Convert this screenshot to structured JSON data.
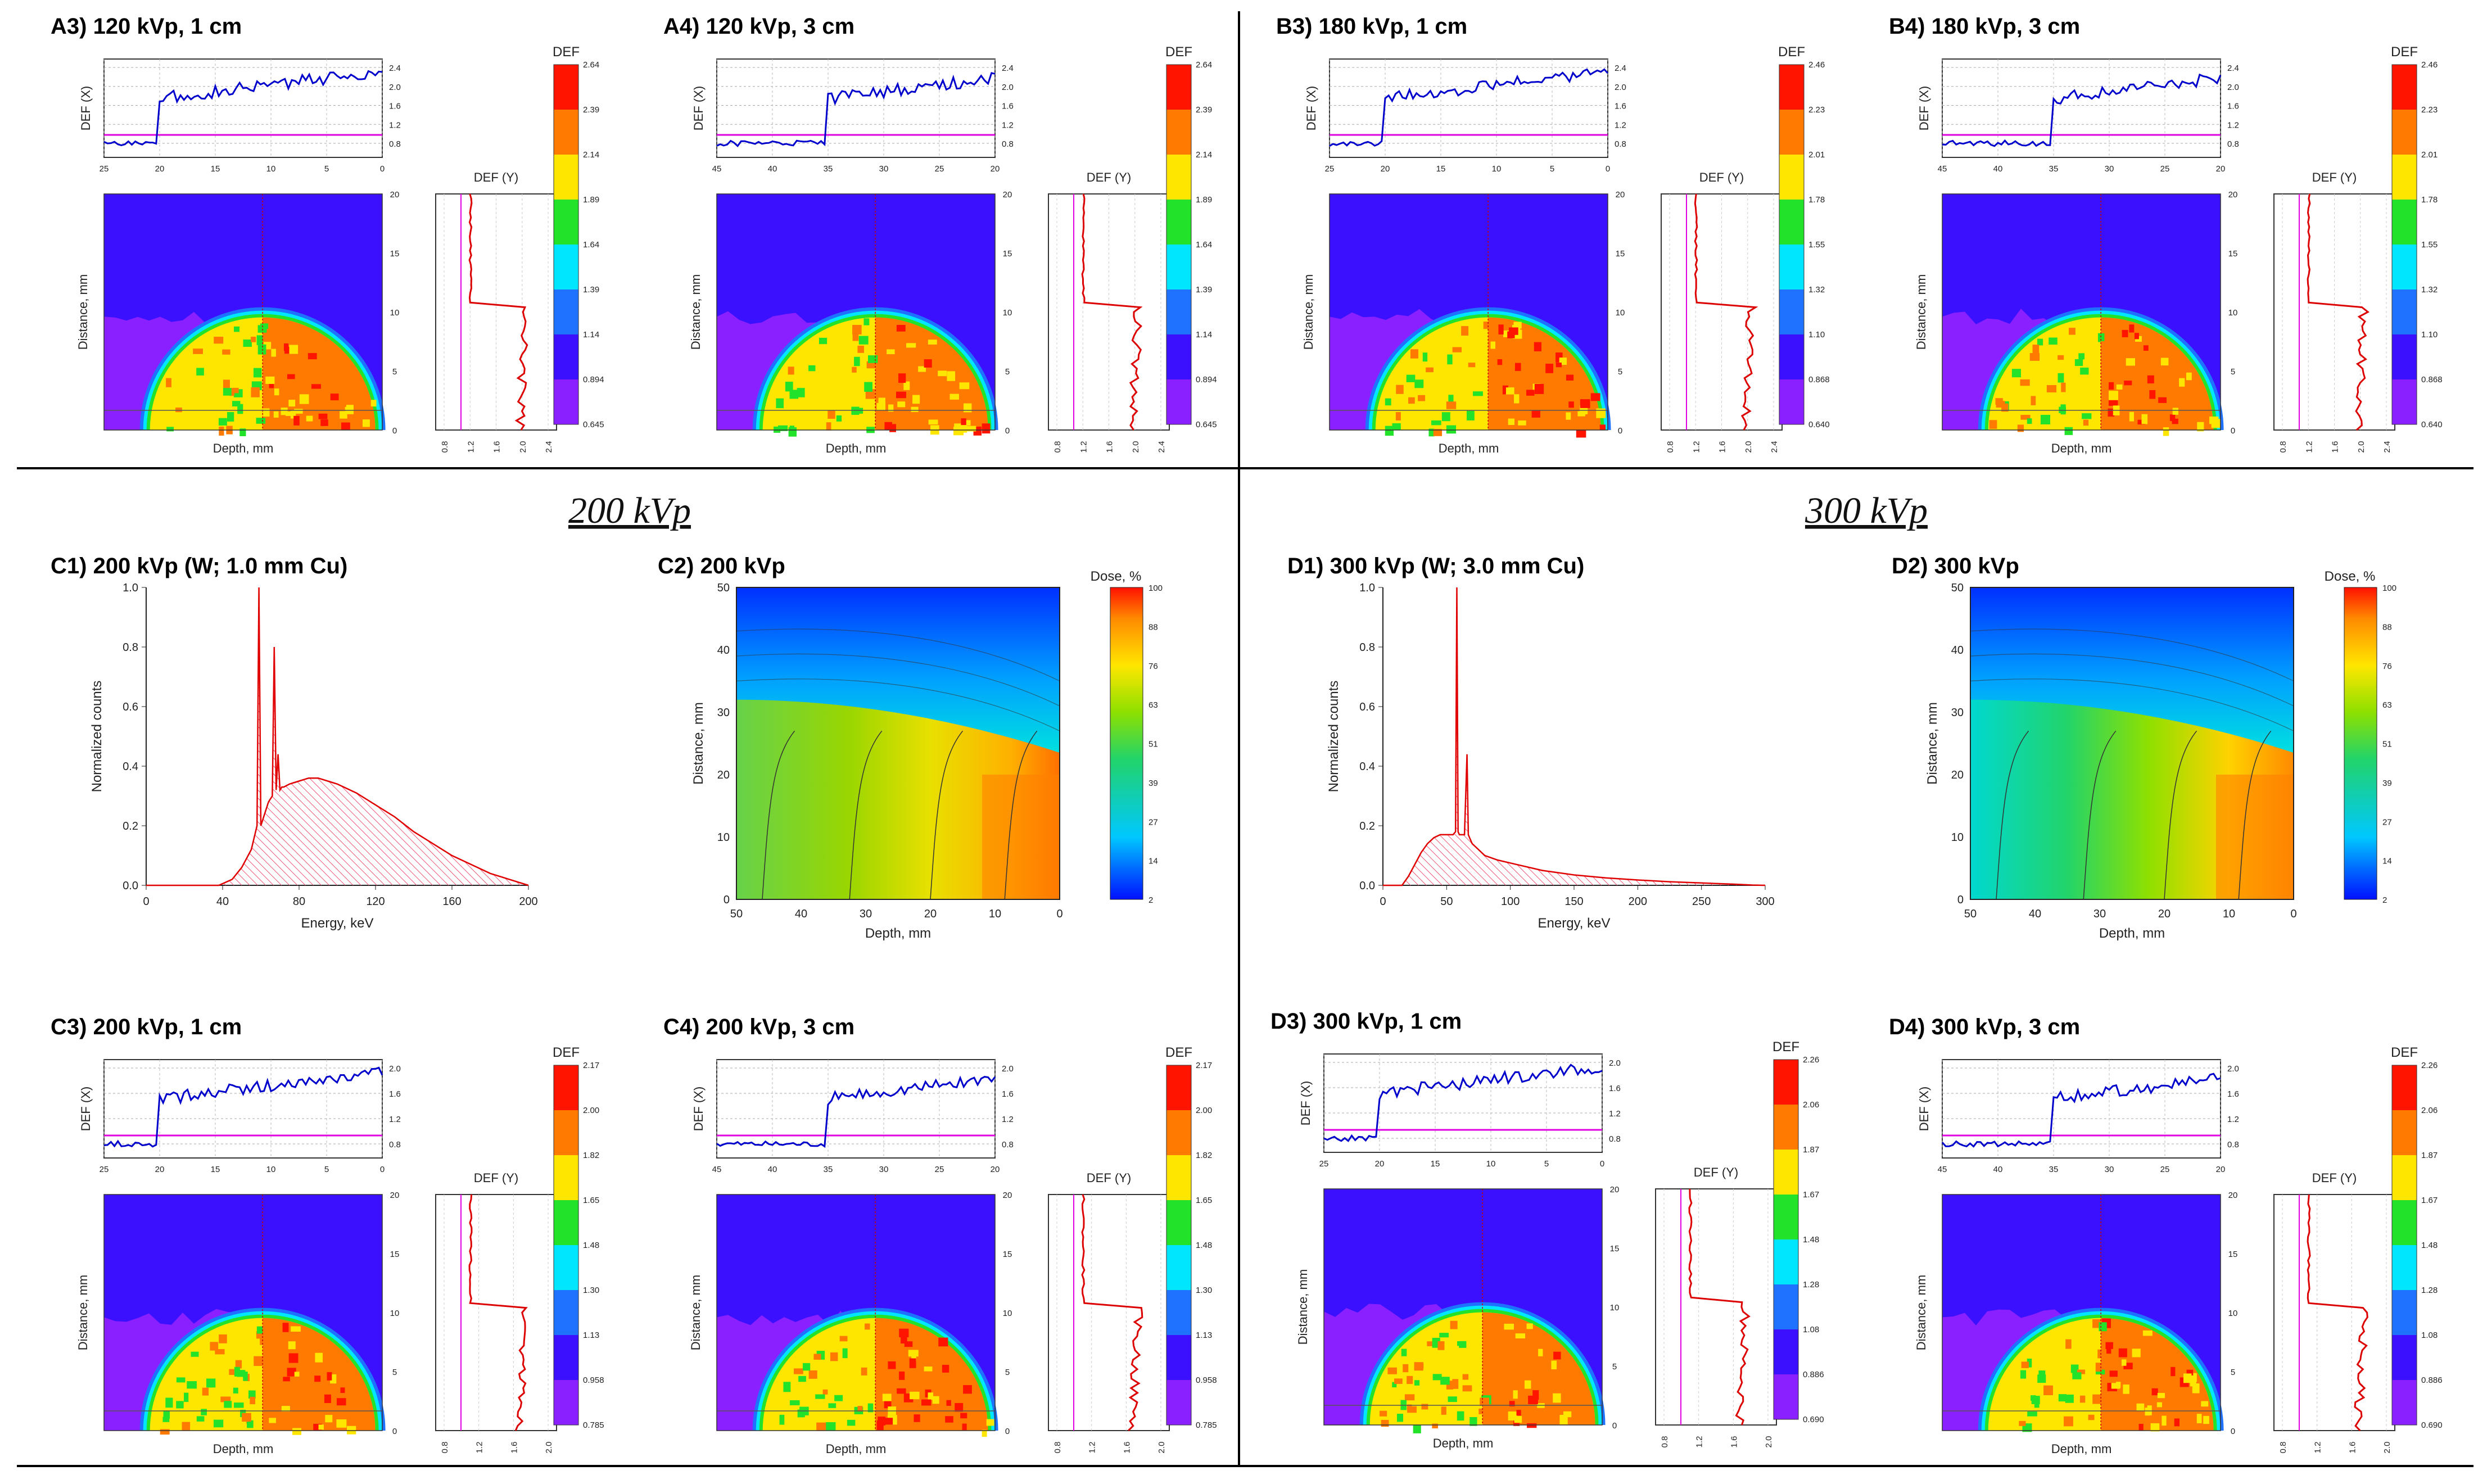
{
  "sections": [
    {
      "label": "200 kVp"
    },
    {
      "label": "300 kVp"
    }
  ],
  "colors": {
    "def_x_line": "#0000cc",
    "def_y_line": "#dd0000",
    "baseline": "#e000e0",
    "spectrum_line": "#e00000",
    "spectrum_hatch": "#ee5577"
  },
  "common_labels": {
    "def_x_axis": "DEF (X)",
    "def_y_axis": "DEF (Y)",
    "colorbar_title": "DEF",
    "depth_axis": "Depth, mm",
    "distance_axis": "Distance, mm",
    "counts_axis": "Normalized counts",
    "energy_axis": "Energy, keV",
    "dose_title": "Dose, %"
  },
  "chart_data": [
    {
      "id": "A3",
      "type": "heatmap",
      "title": "A3) 120 kVp, 1 cm",
      "xlabel": "Depth, mm",
      "ylabel": "Distance, mm",
      "x_ticks": [
        "25",
        "20",
        "15",
        "10",
        "5",
        "0"
      ],
      "y_ticks": [
        "0",
        "5",
        "10",
        "15",
        "20"
      ],
      "def_x_ticks": [
        "0.8",
        "1.2",
        "1.6",
        "2.0",
        "2.4"
      ],
      "def_y_ticks": [
        "0.8",
        "1.2",
        "1.6",
        "2.0",
        "2.4"
      ],
      "colorbar_ticks": [
        "0.645",
        "0.894",
        "1.14",
        "1.39",
        "1.64",
        "1.89",
        "2.14",
        "2.39",
        "2.64"
      ]
    },
    {
      "id": "A4",
      "type": "heatmap",
      "title": "A4) 120 kVp, 3 cm",
      "xlabel": "Depth, mm",
      "ylabel": "Distance, mm",
      "x_ticks": [
        "45",
        "40",
        "35",
        "30",
        "25",
        "20"
      ],
      "y_ticks": [
        "0",
        "5",
        "10",
        "15",
        "20"
      ],
      "def_x_ticks": [
        "0.8",
        "1.2",
        "1.6",
        "2.0",
        "2.4"
      ],
      "def_y_ticks": [
        "0.8",
        "1.2",
        "1.6",
        "2.0",
        "2.4"
      ],
      "colorbar_ticks": [
        "0.645",
        "0.894",
        "1.14",
        "1.39",
        "1.64",
        "1.89",
        "2.14",
        "2.39",
        "2.64"
      ]
    },
    {
      "id": "B3",
      "type": "heatmap",
      "title": "B3) 180 kVp, 1 cm",
      "xlabel": "Depth, mm",
      "ylabel": "Distance, mm",
      "x_ticks": [
        "25",
        "20",
        "15",
        "10",
        "5",
        "0"
      ],
      "y_ticks": [
        "0",
        "5",
        "10",
        "15",
        "20"
      ],
      "def_x_ticks": [
        "0.8",
        "1.2",
        "1.6",
        "2.0",
        "2.4"
      ],
      "def_y_ticks": [
        "0.8",
        "1.2",
        "1.6",
        "2.0",
        "2.4"
      ],
      "colorbar_ticks": [
        "0.640",
        "0.868",
        "1.10",
        "1.32",
        "1.55",
        "1.78",
        "2.01",
        "2.23",
        "2.46"
      ]
    },
    {
      "id": "B4",
      "type": "heatmap",
      "title": "B4) 180 kVp, 3 cm",
      "xlabel": "Depth, mm",
      "ylabel": "Distance, mm",
      "x_ticks": [
        "45",
        "40",
        "35",
        "30",
        "25",
        "20"
      ],
      "y_ticks": [
        "0",
        "5",
        "10",
        "15",
        "20"
      ],
      "def_x_ticks": [
        "0.8",
        "1.2",
        "1.6",
        "2.0",
        "2.4"
      ],
      "def_y_ticks": [
        "0.8",
        "1.2",
        "1.6",
        "2.0",
        "2.4"
      ],
      "colorbar_ticks": [
        "0.640",
        "0.868",
        "1.10",
        "1.32",
        "1.55",
        "1.78",
        "2.01",
        "2.23",
        "2.46"
      ]
    },
    {
      "id": "C1",
      "type": "area",
      "title": "C1) 200 kVp (W; 1.0 mm Cu)",
      "xlabel": "Energy, keV",
      "ylabel": "Normalized counts",
      "xlim": [
        0,
        200
      ],
      "ylim": [
        0,
        1.0
      ],
      "x_ticks": [
        "0",
        "40",
        "80",
        "120",
        "160",
        "200"
      ],
      "y_ticks": [
        "0.0",
        "0.2",
        "0.4",
        "0.6",
        "0.8",
        "1.0"
      ],
      "x": [
        0,
        38,
        45,
        50,
        55,
        58,
        59,
        60,
        61,
        62,
        64,
        66,
        67,
        68,
        69,
        70,
        71,
        72,
        75,
        80,
        85,
        90,
        95,
        100,
        110,
        120,
        130,
        140,
        150,
        160,
        170,
        180,
        190,
        200
      ],
      "y": [
        0,
        0,
        0.02,
        0.06,
        0.12,
        0.2,
        1.0,
        0.2,
        0.22,
        0.24,
        0.28,
        0.3,
        0.8,
        0.32,
        0.44,
        0.32,
        0.33,
        0.33,
        0.34,
        0.35,
        0.36,
        0.36,
        0.35,
        0.34,
        0.31,
        0.27,
        0.23,
        0.18,
        0.14,
        0.1,
        0.07,
        0.04,
        0.02,
        0
      ]
    },
    {
      "id": "C2",
      "type": "heatmap",
      "title": "C2) 200 kVp",
      "xlabel": "Depth, mm",
      "ylabel": "Distance, mm",
      "colorbar_label": "Dose, %",
      "x_ticks": [
        "50",
        "40",
        "30",
        "20",
        "10",
        "0"
      ],
      "y_ticks": [
        "0",
        "10",
        "20",
        "30",
        "40",
        "50"
      ],
      "colorbar_ticks": [
        "2",
        "14",
        "27",
        "39",
        "51",
        "63",
        "76",
        "88",
        "100"
      ]
    },
    {
      "id": "C3",
      "type": "heatmap",
      "title": "C3) 200 kVp, 1 cm",
      "xlabel": "Depth, mm",
      "ylabel": "Distance, mm",
      "x_ticks": [
        "25",
        "20",
        "15",
        "10",
        "5",
        "0"
      ],
      "y_ticks": [
        "0",
        "5",
        "10",
        "15",
        "20"
      ],
      "def_x_ticks": [
        "0.8",
        "1.2",
        "1.6",
        "2.0"
      ],
      "def_y_ticks": [
        "0.8",
        "1.2",
        "1.6",
        "2.0"
      ],
      "colorbar_ticks": [
        "0.785",
        "0.958",
        "1.13",
        "1.30",
        "1.48",
        "1.65",
        "1.82",
        "2.00",
        "2.17"
      ]
    },
    {
      "id": "C4",
      "type": "heatmap",
      "title": "C4) 200 kVp, 3 cm",
      "xlabel": "Depth, mm",
      "ylabel": "Distance, mm",
      "x_ticks": [
        "45",
        "40",
        "35",
        "30",
        "25",
        "20"
      ],
      "y_ticks": [
        "0",
        "5",
        "10",
        "15",
        "20"
      ],
      "def_x_ticks": [
        "0.8",
        "1.2",
        "1.6",
        "2.0"
      ],
      "def_y_ticks": [
        "0.8",
        "1.2",
        "1.6",
        "2.0"
      ],
      "colorbar_ticks": [
        "0.785",
        "0.958",
        "1.13",
        "1.30",
        "1.48",
        "1.65",
        "1.82",
        "2.00",
        "2.17"
      ]
    },
    {
      "id": "D1",
      "type": "area",
      "title": "D1) 300 kVp (W; 3.0 mm Cu)",
      "xlabel": "Energy, keV",
      "ylabel": "Normalized counts",
      "xlim": [
        0,
        300
      ],
      "ylim": [
        0,
        1.0
      ],
      "x_ticks": [
        "0",
        "50",
        "100",
        "150",
        "200",
        "250",
        "300"
      ],
      "y_ticks": [
        "0.0",
        "0.2",
        "0.4",
        "0.6",
        "0.8",
        "1.0"
      ],
      "x": [
        0,
        15,
        20,
        25,
        30,
        35,
        40,
        45,
        50,
        55,
        57,
        58,
        59,
        60,
        62,
        64,
        66,
        67,
        68,
        70,
        75,
        80,
        90,
        100,
        125,
        150,
        175,
        200,
        225,
        250,
        275,
        290,
        300
      ],
      "y": [
        0,
        0,
        0.03,
        0.07,
        0.11,
        0.14,
        0.16,
        0.17,
        0.17,
        0.17,
        0.18,
        1.0,
        0.18,
        0.17,
        0.17,
        0.17,
        0.44,
        0.17,
        0.16,
        0.14,
        0.12,
        0.1,
        0.085,
        0.075,
        0.05,
        0.035,
        0.025,
        0.018,
        0.012,
        0.008,
        0.004,
        0.001,
        0
      ]
    },
    {
      "id": "D2",
      "type": "heatmap",
      "title": "D2) 300 kVp",
      "xlabel": "Depth, mm",
      "ylabel": "Distance, mm",
      "colorbar_label": "Dose, %",
      "x_ticks": [
        "50",
        "40",
        "30",
        "20",
        "10",
        "0"
      ],
      "y_ticks": [
        "0",
        "10",
        "20",
        "30",
        "40",
        "50"
      ],
      "colorbar_ticks": [
        "2",
        "14",
        "27",
        "39",
        "51",
        "63",
        "76",
        "88",
        "100"
      ]
    },
    {
      "id": "D3",
      "type": "heatmap",
      "title": "D3) 300 kVp, 1 cm",
      "xlabel": "Depth, mm",
      "ylabel": "Distance, mm",
      "x_ticks": [
        "25",
        "20",
        "15",
        "10",
        "5",
        "0"
      ],
      "y_ticks": [
        "0",
        "5",
        "10",
        "15",
        "20"
      ],
      "def_x_ticks": [
        "0.8",
        "1.2",
        "1.6",
        "2.0"
      ],
      "def_y_ticks": [
        "0.8",
        "1.2",
        "1.6",
        "2.0"
      ],
      "colorbar_ticks": [
        "0.690",
        "0.886",
        "1.08",
        "1.28",
        "1.48",
        "1.67",
        "1.87",
        "2.06",
        "2.26"
      ]
    },
    {
      "id": "D4",
      "type": "heatmap",
      "title": "D4) 300 kVp, 3 cm",
      "xlabel": "Depth, mm",
      "ylabel": "Distance, mm",
      "x_ticks": [
        "45",
        "40",
        "35",
        "30",
        "25",
        "20"
      ],
      "y_ticks": [
        "0",
        "5",
        "10",
        "15",
        "20"
      ],
      "def_x_ticks": [
        "0.8",
        "1.2",
        "1.6",
        "2.0"
      ],
      "def_y_ticks": [
        "0.8",
        "1.2",
        "1.6",
        "2.0"
      ],
      "colorbar_ticks": [
        "0.690",
        "0.886",
        "1.08",
        "1.28",
        "1.48",
        "1.67",
        "1.87",
        "2.06",
        "2.26"
      ]
    }
  ]
}
